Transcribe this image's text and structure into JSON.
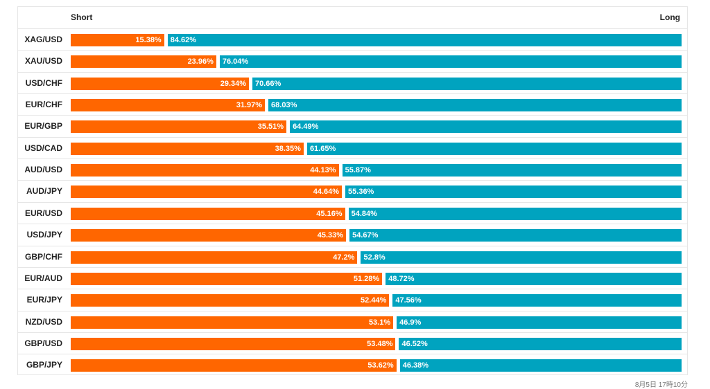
{
  "header": {
    "short_label": "Short",
    "long_label": "Long"
  },
  "timestamp": "8月5日 17時10分",
  "colors": {
    "short": "#ff6600",
    "long": "#00a3bf"
  },
  "chart_data": {
    "type": "bar",
    "orientation": "horizontal",
    "stacked": "100%",
    "grid": false,
    "categories": [
      "XAG/USD",
      "XAU/USD",
      "USD/CHF",
      "EUR/CHF",
      "EUR/GBP",
      "USD/CAD",
      "AUD/USD",
      "AUD/JPY",
      "EUR/USD",
      "USD/JPY",
      "GBP/CHF",
      "EUR/AUD",
      "EUR/JPY",
      "NZD/USD",
      "GBP/USD",
      "GBP/JPY"
    ],
    "series": [
      {
        "name": "Short",
        "values": [
          15.38,
          23.96,
          29.34,
          31.97,
          35.51,
          38.35,
          44.13,
          44.64,
          45.16,
          45.33,
          47.2,
          51.28,
          52.44,
          53.1,
          53.48,
          53.62
        ],
        "labels": [
          "15.38%",
          "23.96%",
          "29.34%",
          "31.97%",
          "35.51%",
          "38.35%",
          "44.13%",
          "44.64%",
          "45.16%",
          "45.33%",
          "47.2%",
          "51.28%",
          "52.44%",
          "53.1%",
          "53.48%",
          "53.62%"
        ]
      },
      {
        "name": "Long",
        "values": [
          84.62,
          76.04,
          70.66,
          68.03,
          64.49,
          61.65,
          55.87,
          55.36,
          54.84,
          54.67,
          52.8,
          48.72,
          47.56,
          46.9,
          46.52,
          46.38
        ],
        "labels": [
          "84.62%",
          "76.04%",
          "70.66%",
          "68.03%",
          "64.49%",
          "61.65%",
          "55.87%",
          "55.36%",
          "54.84%",
          "54.67%",
          "52.8%",
          "48.72%",
          "47.56%",
          "46.9%",
          "46.52%",
          "46.38%"
        ]
      }
    ]
  }
}
